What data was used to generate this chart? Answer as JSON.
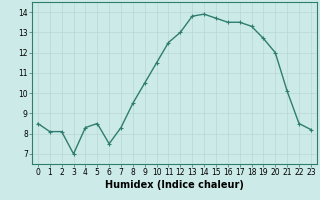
{
  "x": [
    0,
    1,
    2,
    3,
    4,
    5,
    6,
    7,
    8,
    9,
    10,
    11,
    12,
    13,
    14,
    15,
    16,
    17,
    18,
    19,
    20,
    21,
    22,
    23
  ],
  "y": [
    8.5,
    8.1,
    8.1,
    7.0,
    8.3,
    8.5,
    7.5,
    8.3,
    9.5,
    10.5,
    11.5,
    12.5,
    13.0,
    13.8,
    13.9,
    13.7,
    13.5,
    13.5,
    13.3,
    12.7,
    12.0,
    10.1,
    8.5,
    8.2
  ],
  "line_color": "#2e7d6e",
  "marker": "+",
  "marker_size": 3,
  "line_width": 1.0,
  "xlabel": "Humidex (Indice chaleur)",
  "xlabel_fontsize": 7,
  "xlim": [
    -0.5,
    23.5
  ],
  "ylim": [
    6.5,
    14.5
  ],
  "yticks": [
    7,
    8,
    9,
    10,
    11,
    12,
    13,
    14
  ],
  "xticks": [
    0,
    1,
    2,
    3,
    4,
    5,
    6,
    7,
    8,
    9,
    10,
    11,
    12,
    13,
    14,
    15,
    16,
    17,
    18,
    19,
    20,
    21,
    22,
    23
  ],
  "tick_fontsize": 5.5,
  "bg_color": "#cceae8",
  "grid_color": "#b8d8d5",
  "axes_color": "#2e7d6e"
}
